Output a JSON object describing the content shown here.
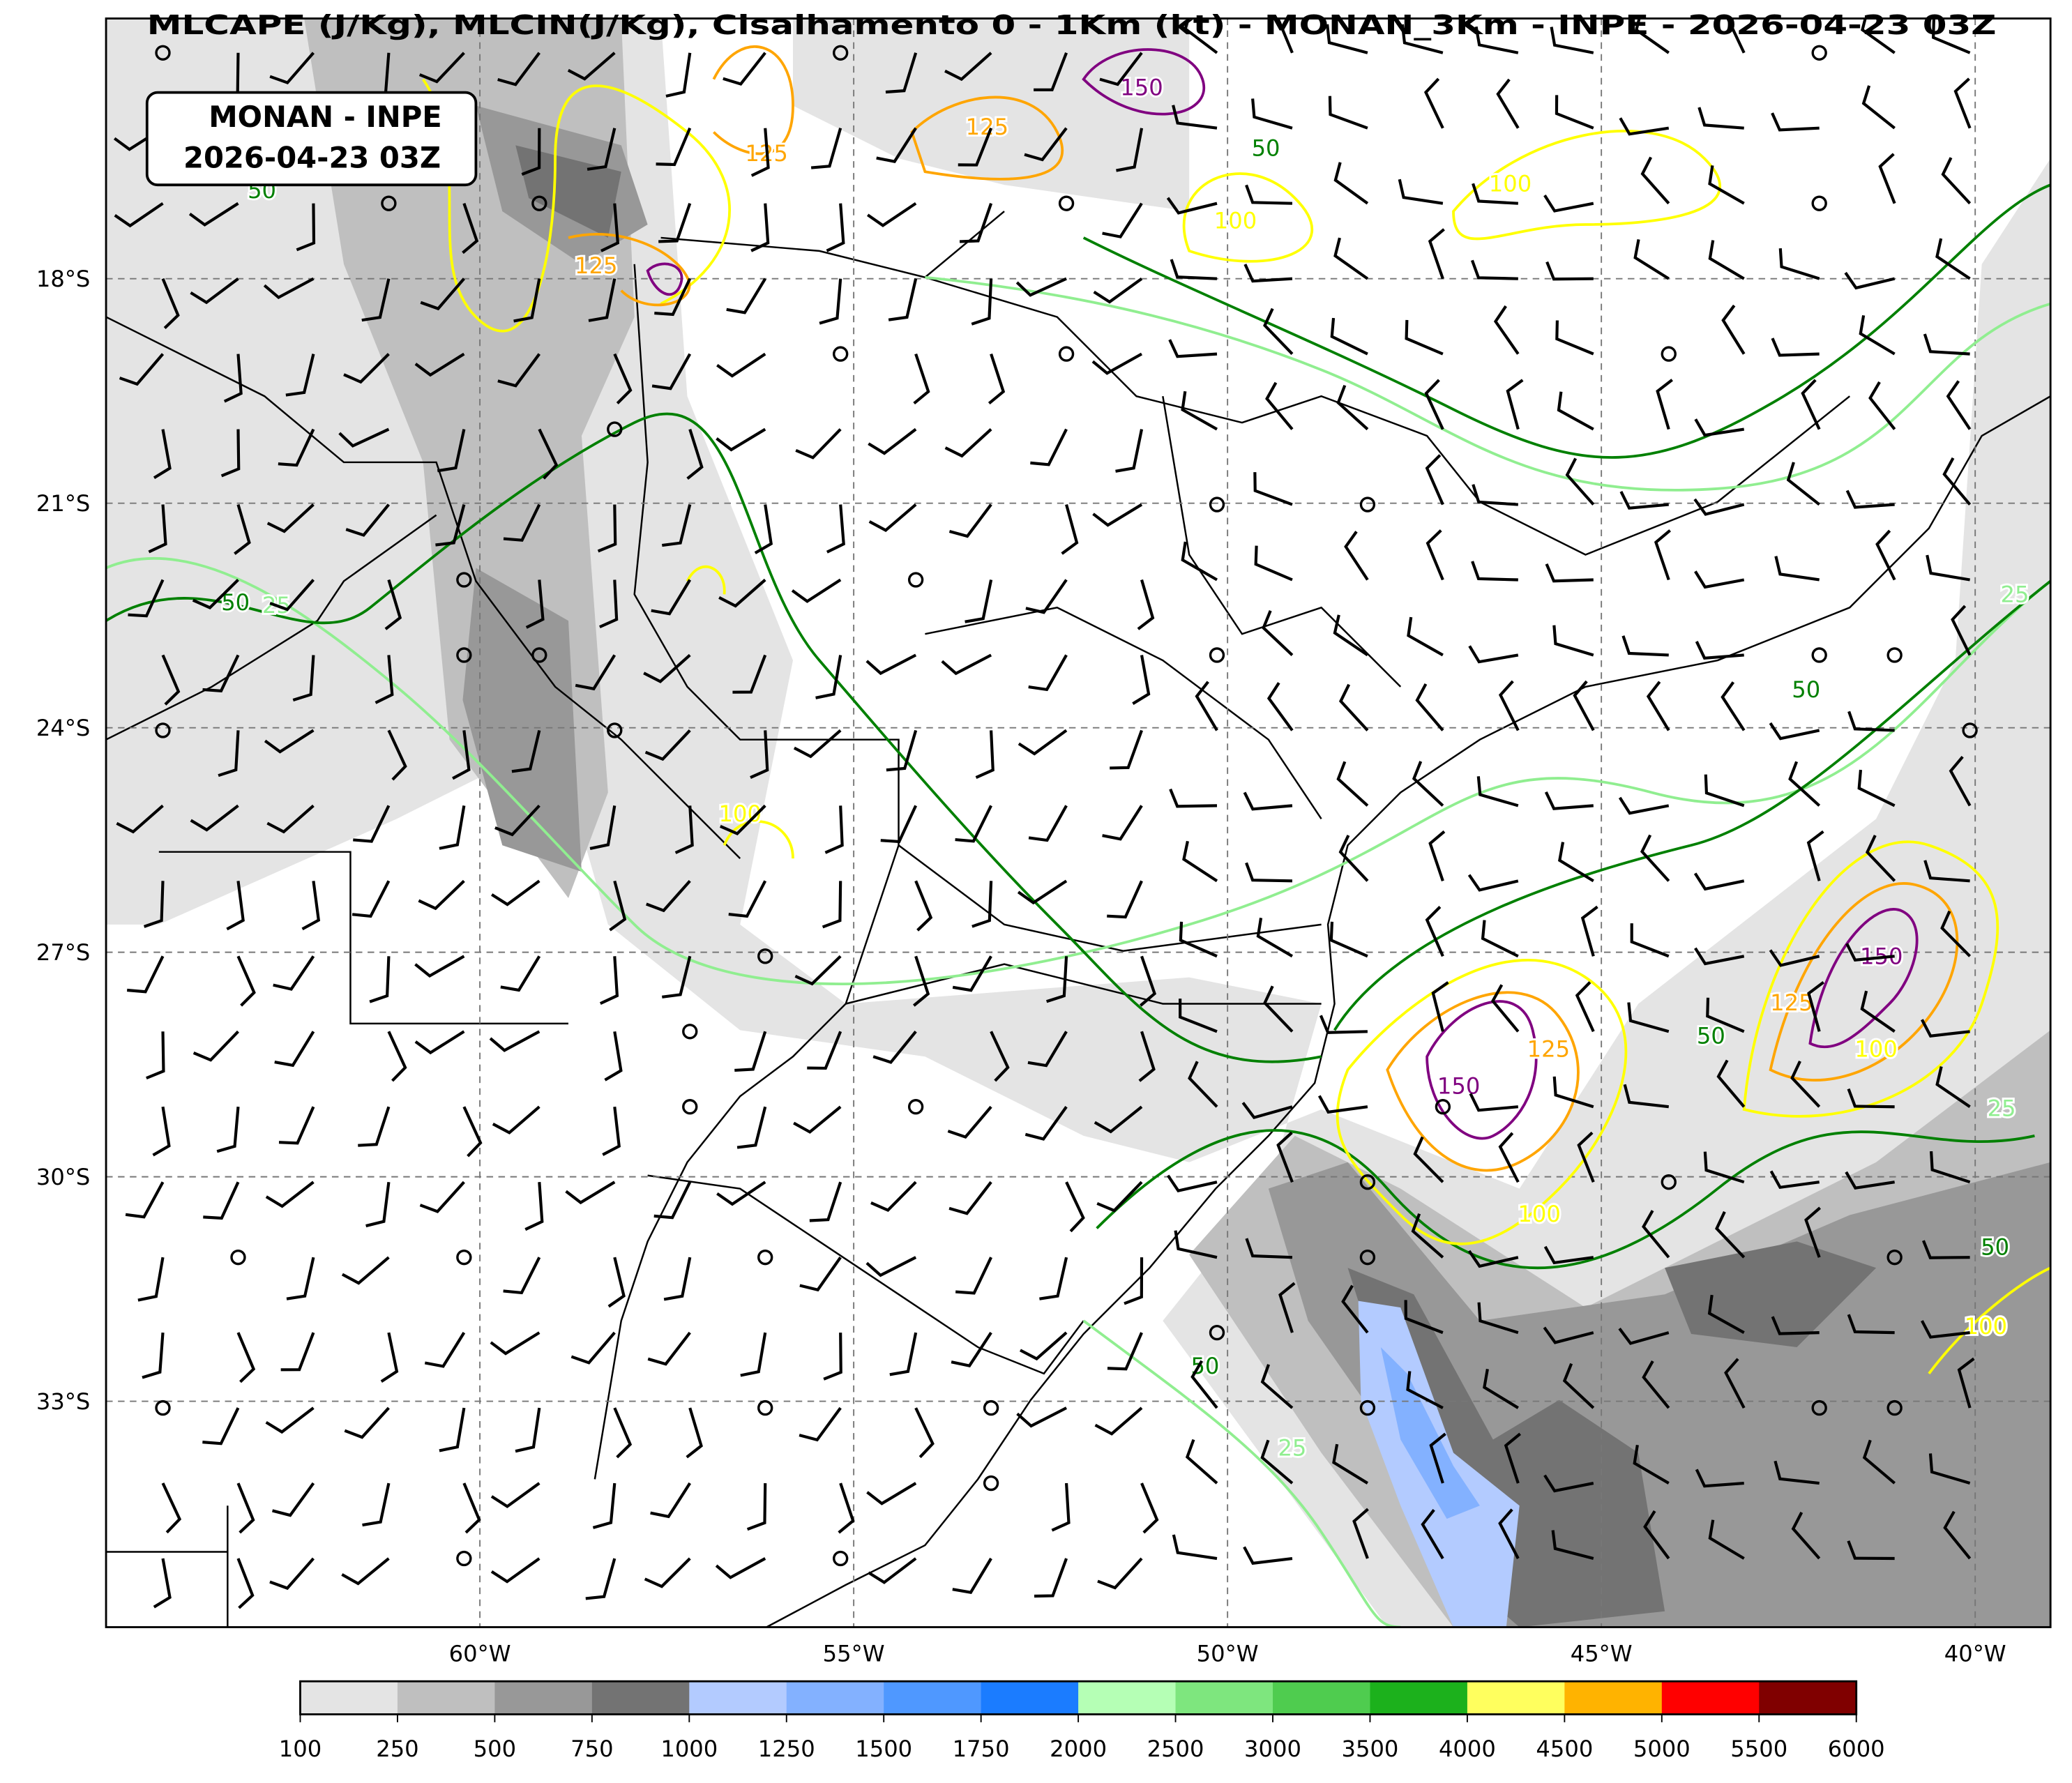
{
  "title": "MLCAPE (J/Kg), MLCIN(J/Kg), Cisalhamento 0 - 1Km (kt) - MONAN_3Km - INPE - 2026-04-23 03Z",
  "annotation": {
    "line1": "MONAN - INPE",
    "line2": "2026-04-23 03Z"
  },
  "lon_ticks": [
    "60°W",
    "55°W",
    "50°W",
    "45°W",
    "40°W"
  ],
  "lat_ticks": [
    "18°S",
    "21°S",
    "24°S",
    "27°S",
    "30°S",
    "33°S"
  ],
  "colorbar": {
    "levels": [
      "100",
      "250",
      "500",
      "750",
      "1000",
      "1250",
      "1500",
      "1750",
      "2000",
      "2500",
      "3000",
      "3500",
      "4000",
      "4500",
      "5000",
      "5500",
      "6000"
    ],
    "colors": [
      "#e4e4e4",
      "#bfbfbf",
      "#989898",
      "#737373",
      "#b3cbff",
      "#83b1ff",
      "#4f98ff",
      "#1b7cff",
      "#b5ffb5",
      "#7ee67e",
      "#4fcc4f",
      "#1cb11c",
      "#ffff5e",
      "#ffb300",
      "#ff0000",
      "#800000"
    ]
  },
  "contours": {
    "colors": {
      "25": "#90ee90",
      "50": "#008000",
      "100": "#ffff00",
      "125": "#ffa500",
      "150": "#800080"
    },
    "labels": [
      {
        "text": "150",
        "color": "#800080"
      },
      {
        "text": "125",
        "color": "#ffa500"
      },
      {
        "text": "125",
        "color": "#ffa500"
      },
      {
        "text": "125",
        "color": "#ffa500"
      },
      {
        "text": "100",
        "color": "#ffff00"
      },
      {
        "text": "100",
        "color": "#ffff00"
      },
      {
        "text": "50",
        "color": "#008000"
      },
      {
        "text": "50",
        "color": "#008000"
      },
      {
        "text": "25",
        "color": "#90ee90"
      },
      {
        "text": "25",
        "color": "#90ee90"
      },
      {
        "text": "150",
        "color": "#800080"
      },
      {
        "text": "125",
        "color": "#ffa500"
      },
      {
        "text": "100",
        "color": "#ffff00"
      },
      {
        "text": "150",
        "color": "#800080"
      },
      {
        "text": "125",
        "color": "#ffa500"
      },
      {
        "text": "100",
        "color": "#ffff00"
      },
      {
        "text": "50",
        "color": "#008000"
      },
      {
        "text": "50",
        "color": "#008000"
      },
      {
        "text": "50",
        "color": "#008000"
      },
      {
        "text": "25",
        "color": "#90ee90"
      },
      {
        "text": "50",
        "color": "#008000"
      },
      {
        "text": "25",
        "color": "#90ee90"
      },
      {
        "text": "100",
        "color": "#ffff00"
      },
      {
        "text": "50",
        "color": "#008000"
      },
      {
        "text": "100",
        "color": "#ffff00"
      }
    ]
  }
}
